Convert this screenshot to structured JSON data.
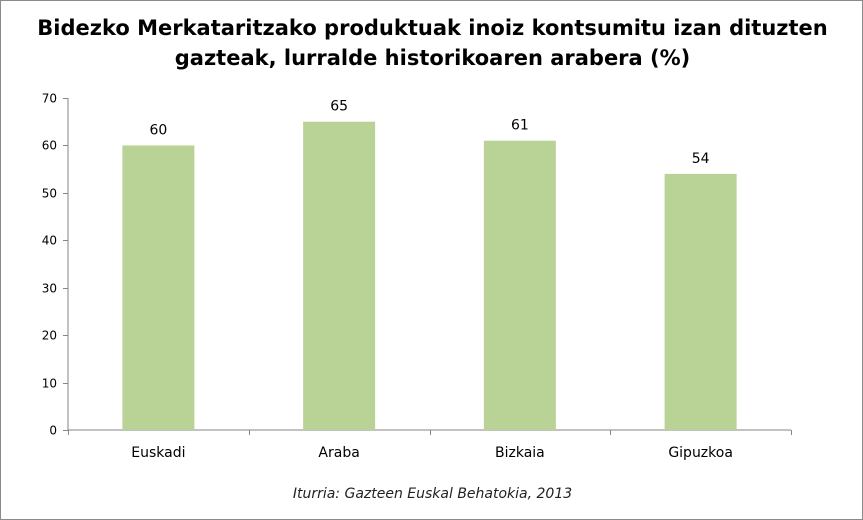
{
  "chart_data": {
    "type": "bar",
    "title_lines": [
      "Bidezko Merkataritzako produktuak inoiz kontsumitu izan dituzten",
      "gazteak, lurralde historikoaren arabera (%)"
    ],
    "categories": [
      "Euskadi",
      "Araba",
      "Bizkaia",
      "Gipuzkoa"
    ],
    "values": [
      60,
      65,
      61,
      54
    ],
    "data_labels": [
      "60",
      "65",
      "61",
      "54"
    ],
    "ylim": [
      0,
      70
    ],
    "yticks": [
      0,
      10,
      20,
      30,
      40,
      50,
      60,
      70
    ],
    "xlabel": "",
    "ylabel": "",
    "grid": false,
    "legend": "none",
    "bar_color": "#b9d295",
    "axis_color": "#868686"
  },
  "source": "Iturria: Gazteen Euskal Behatokia, 2013"
}
